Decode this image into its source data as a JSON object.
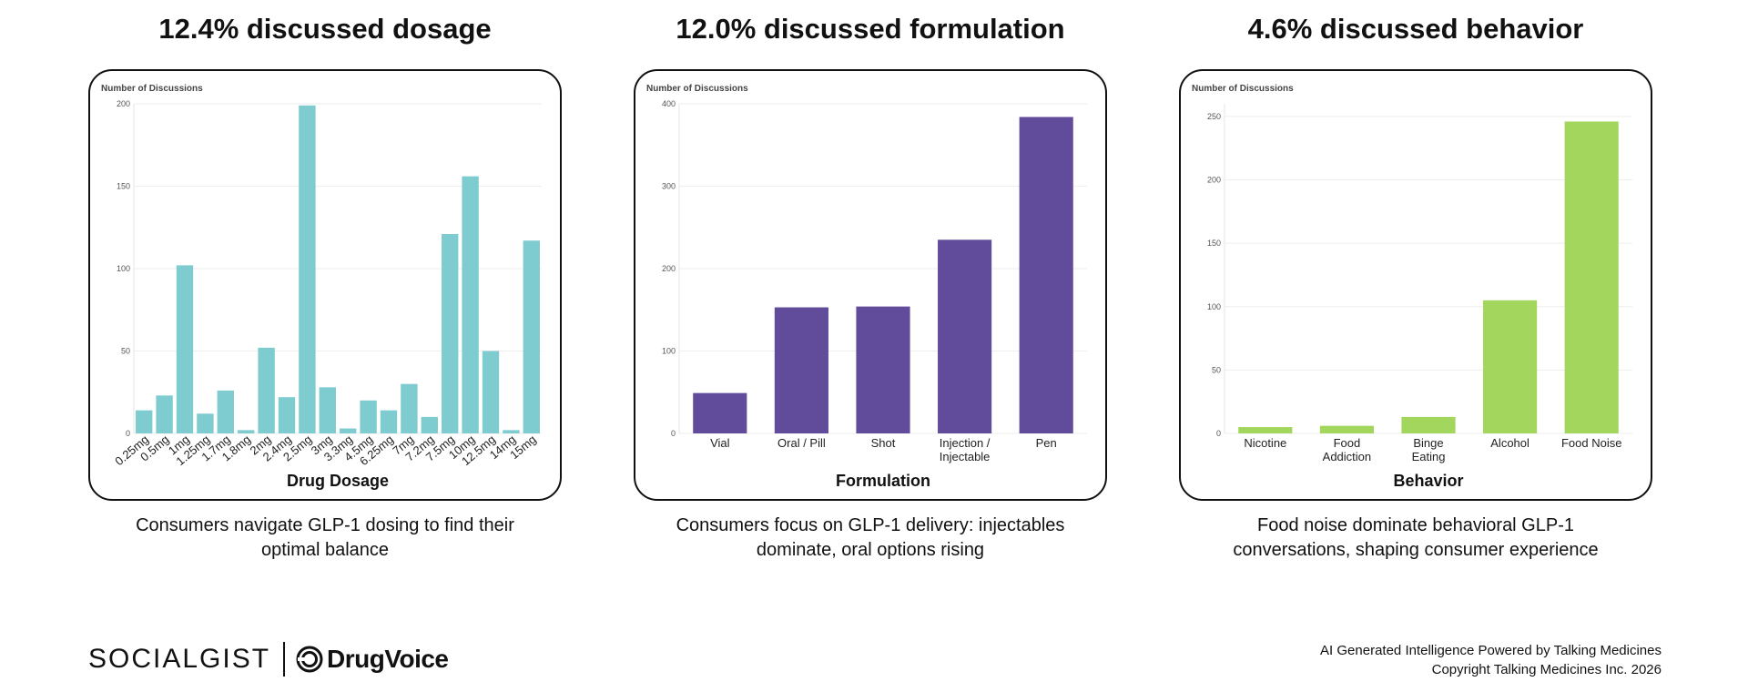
{
  "panels": [
    {
      "title": "12.4% discussed dosage",
      "caption_line1": "Consumers navigate GLP-1 dosing to find their",
      "caption_line2": "optimal balance"
    },
    {
      "title": "12.0% discussed formulation",
      "caption_line1": "Consumers focus on GLP-1 delivery: injectables",
      "caption_line2": "dominate, oral options rising"
    },
    {
      "title": "4.6% discussed behavior",
      "caption_line1": "Food noise dominate behavioral GLP-1",
      "caption_line2": "conversations, shaping consumer experience"
    }
  ],
  "chart_data": [
    {
      "type": "bar",
      "ylabel": "Number of Discussions",
      "xlabel": "Drug Dosage",
      "categories": [
        "0.25mg",
        "0.5mg",
        "1mg",
        "1.25mg",
        "1.7mg",
        "1.8mg",
        "2mg",
        "2.4mg",
        "2.5mg",
        "3mg",
        "3.3mg",
        "4.5mg",
        "6.25mg",
        "7mg",
        "7.2mg",
        "7.5mg",
        "10mg",
        "12.5mg",
        "14mg",
        "15mg"
      ],
      "values": [
        14,
        23,
        102,
        12,
        26,
        2,
        52,
        22,
        199,
        28,
        3,
        20,
        14,
        30,
        10,
        121,
        156,
        50,
        2,
        117
      ],
      "ylim": [
        0,
        200
      ],
      "yticks": [
        0,
        50,
        100,
        150,
        200
      ],
      "color": "#7ecbd0",
      "grid": true
    },
    {
      "type": "bar",
      "ylabel": "Number of Discussions",
      "xlabel": "Formulation",
      "categories": [
        "Vial",
        "Oral / Pill",
        "Shot",
        "Injection / Injectable",
        "Pen"
      ],
      "values": [
        49,
        153,
        154,
        235,
        384
      ],
      "ylim": [
        0,
        400
      ],
      "yticks": [
        0,
        100,
        200,
        300,
        400
      ],
      "color": "#614b9b",
      "grid": true
    },
    {
      "type": "bar",
      "ylabel": "Number of Discussions",
      "xlabel": "Behavior",
      "categories": [
        "Nicotine",
        "Food Addiction",
        "Binge Eating",
        "Alcohol",
        "Food Noise"
      ],
      "values": [
        5,
        6,
        13,
        105,
        246
      ],
      "ylim": [
        0,
        260
      ],
      "yticks": [
        0,
        50,
        100,
        150,
        200,
        250
      ],
      "color": "#a3d65c",
      "grid": true
    }
  ],
  "footer": {
    "logo_left": "SOCIALGIST",
    "logo_right": "DrugVoice",
    "line1": "AI Generated Intelligence Powered by Talking Medicines",
    "line2": "Copyright Talking Medicines Inc. 2026"
  }
}
